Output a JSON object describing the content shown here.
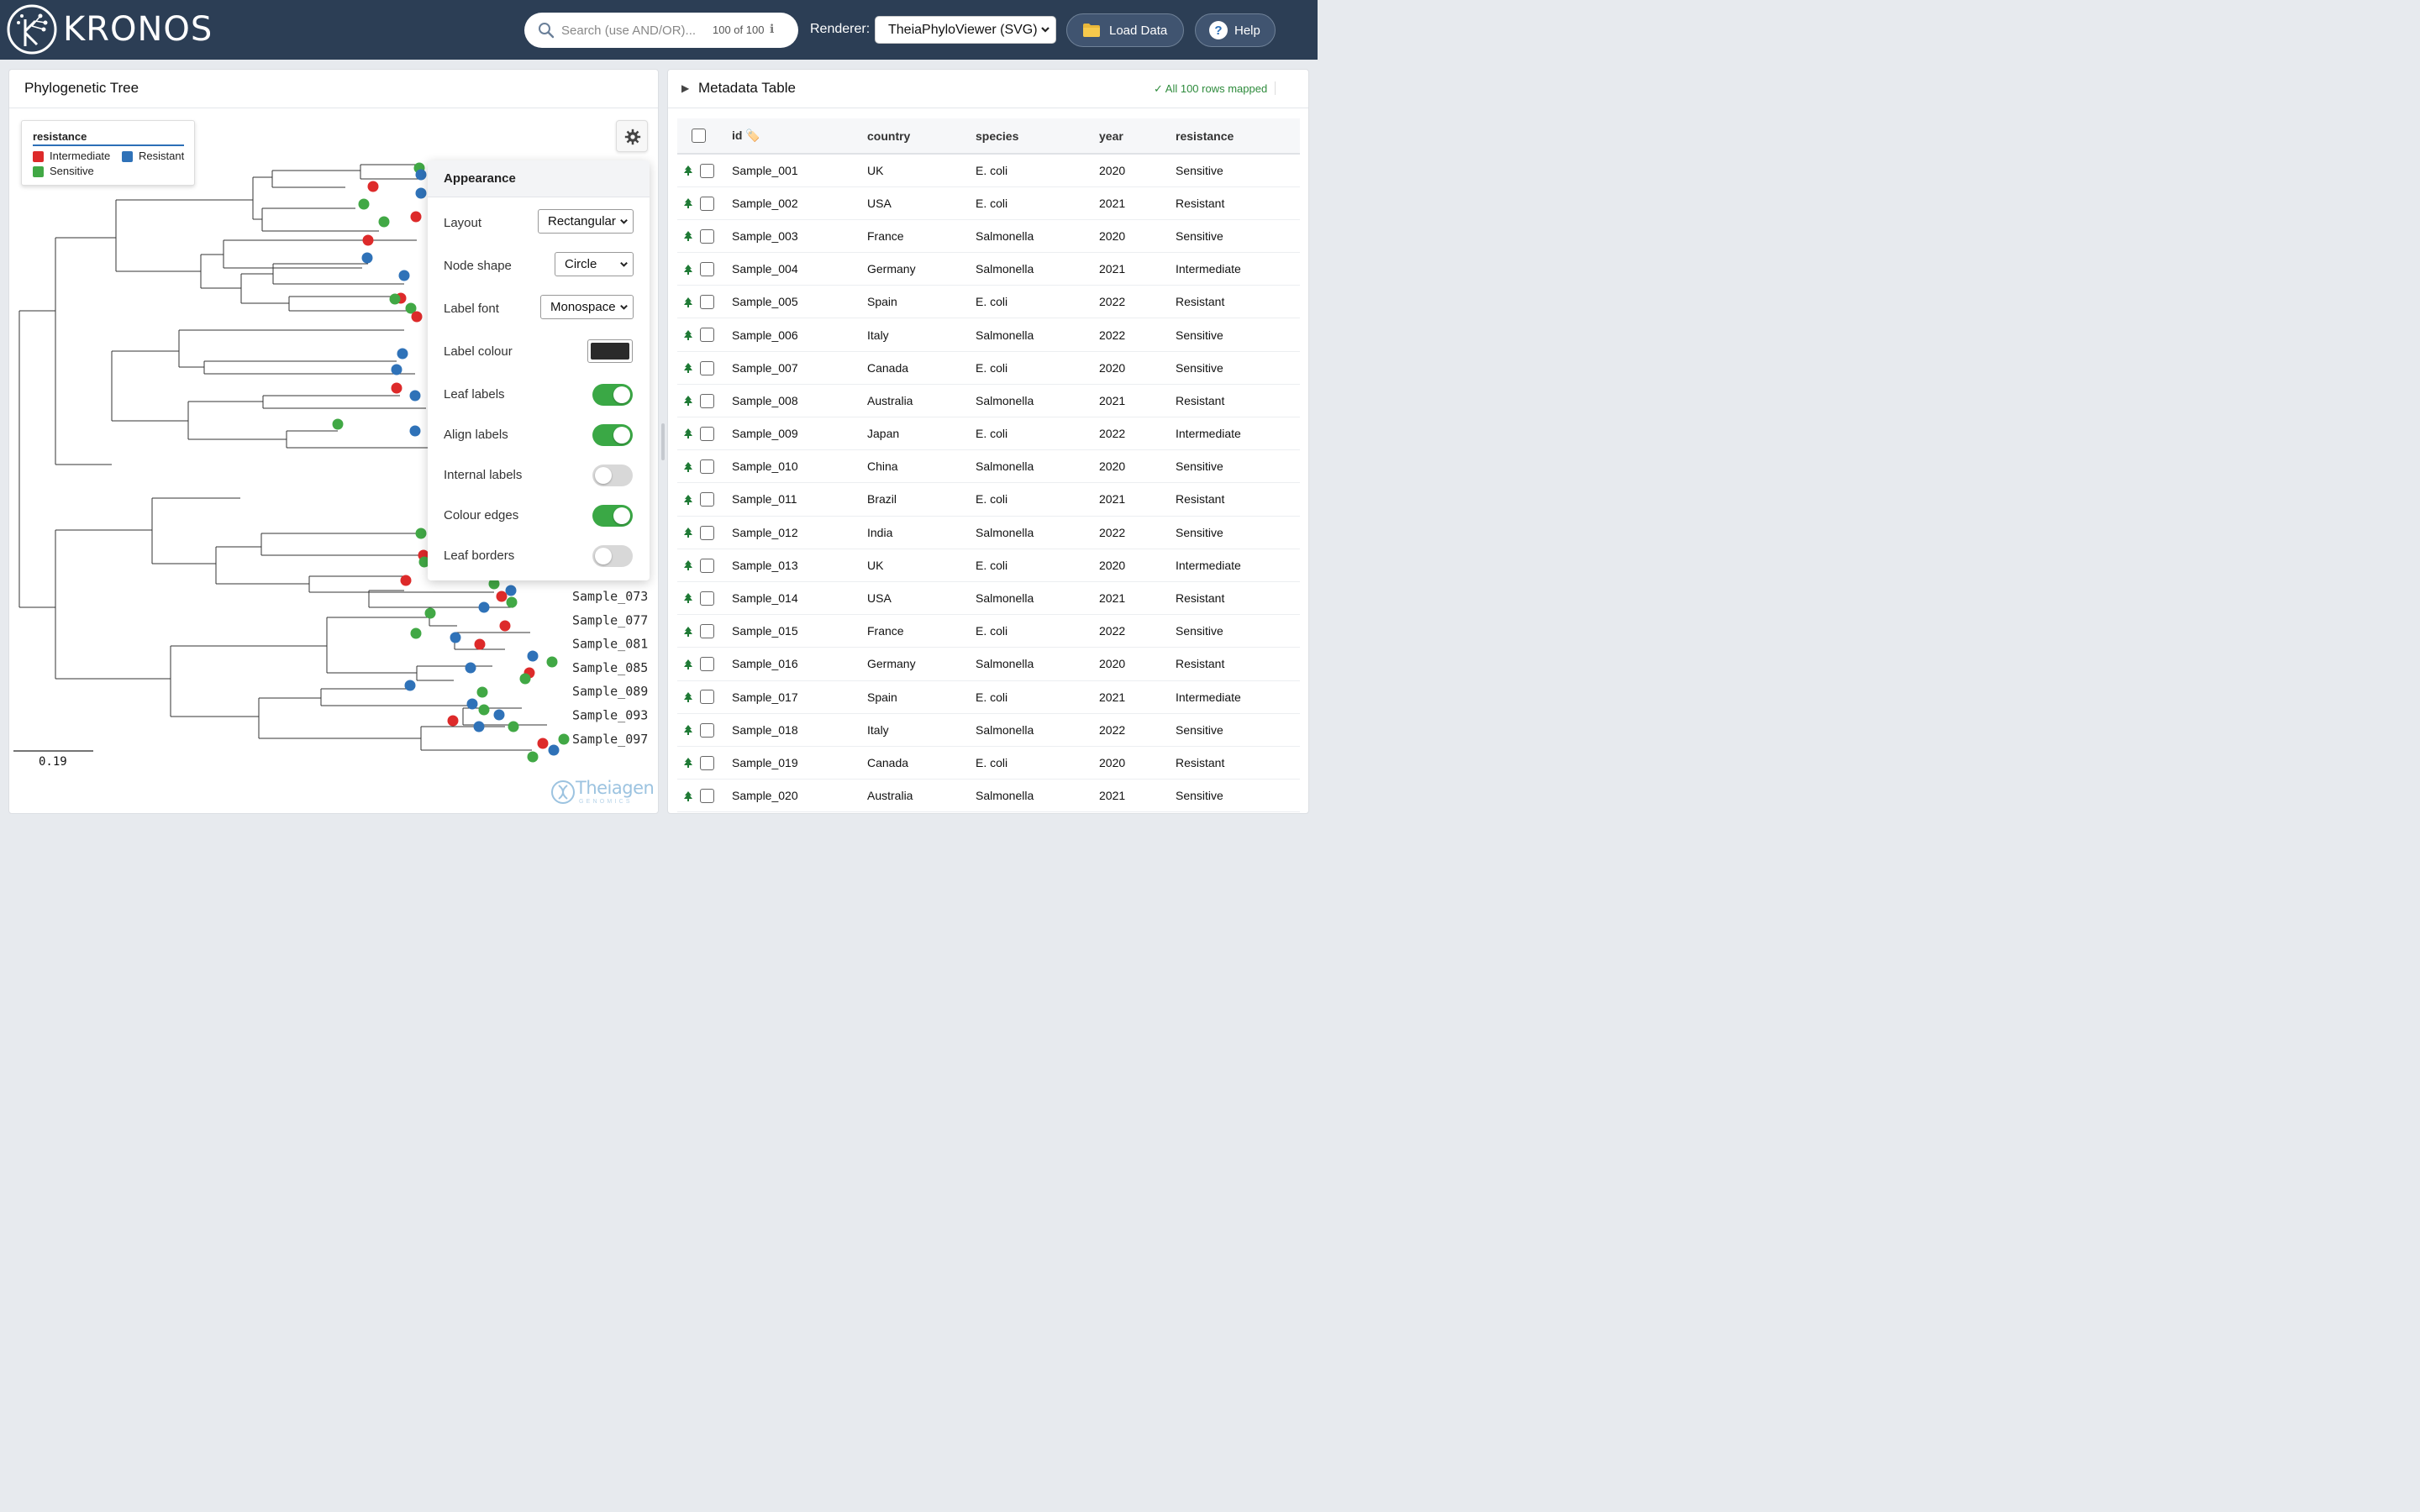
{
  "app": {
    "name": "KRONOS"
  },
  "header": {
    "search_placeholder": "Search (use AND/OR)...",
    "search_count": "100 of 100",
    "search_info_icon": "info-icon",
    "renderer_label": "Renderer:",
    "renderer_value": "TheiaPhyloViewer (SVG)",
    "load_label": "Load Data",
    "load_icon": "folder-icon",
    "help_label": "Help",
    "help_icon": "question-icon"
  },
  "tree_panel": {
    "title": "Phylogenetic Tree",
    "legend": {
      "title": "resistance",
      "items": [
        {
          "label": "Intermediate",
          "color": "#dd2a2a"
        },
        {
          "label": "Resistant",
          "color": "#2f72b8"
        },
        {
          "label": "Sensitive",
          "color": "#41a845"
        }
      ]
    },
    "scale_label": "0.19",
    "visible_leaf_labels": [
      "Sample_073",
      "Sample_077",
      "Sample_081",
      "Sample_085",
      "Sample_089",
      "Sample_093",
      "Sample_097"
    ],
    "watermark": {
      "name": "Theiagen",
      "sub": "GENOMICS"
    }
  },
  "appearance": {
    "title": "Appearance",
    "layout_label": "Layout",
    "layout_value": "Rectangular",
    "node_shape_label": "Node shape",
    "node_shape_value": "Circle",
    "label_font_label": "Label font",
    "label_font_value": "Monospace",
    "label_colour_label": "Label colour",
    "label_colour_value": "#2a2a2a",
    "toggles": [
      {
        "label": "Leaf labels",
        "on": true
      },
      {
        "label": "Align labels",
        "on": true
      },
      {
        "label": "Internal labels",
        "on": false
      },
      {
        "label": "Colour edges",
        "on": true
      },
      {
        "label": "Leaf borders",
        "on": false
      }
    ]
  },
  "meta_panel": {
    "title": "Metadata Table",
    "status": "✓ All 100 rows mapped",
    "columns": [
      "id",
      "country",
      "species",
      "year",
      "resistance"
    ],
    "rows": [
      [
        "Sample_001",
        "UK",
        "E. coli",
        "2020",
        "Sensitive"
      ],
      [
        "Sample_002",
        "USA",
        "E. coli",
        "2021",
        "Resistant"
      ],
      [
        "Sample_003",
        "France",
        "Salmonella",
        "2020",
        "Sensitive"
      ],
      [
        "Sample_004",
        "Germany",
        "Salmonella",
        "2021",
        "Intermediate"
      ],
      [
        "Sample_005",
        "Spain",
        "E. coli",
        "2022",
        "Resistant"
      ],
      [
        "Sample_006",
        "Italy",
        "Salmonella",
        "2022",
        "Sensitive"
      ],
      [
        "Sample_007",
        "Canada",
        "E. coli",
        "2020",
        "Sensitive"
      ],
      [
        "Sample_008",
        "Australia",
        "Salmonella",
        "2021",
        "Resistant"
      ],
      [
        "Sample_009",
        "Japan",
        "E. coli",
        "2022",
        "Intermediate"
      ],
      [
        "Sample_010",
        "China",
        "Salmonella",
        "2020",
        "Sensitive"
      ],
      [
        "Sample_011",
        "Brazil",
        "E. coli",
        "2021",
        "Resistant"
      ],
      [
        "Sample_012",
        "India",
        "Salmonella",
        "2022",
        "Sensitive"
      ],
      [
        "Sample_013",
        "UK",
        "E. coli",
        "2020",
        "Intermediate"
      ],
      [
        "Sample_014",
        "USA",
        "Salmonella",
        "2021",
        "Resistant"
      ],
      [
        "Sample_015",
        "France",
        "E. coli",
        "2022",
        "Sensitive"
      ],
      [
        "Sample_016",
        "Germany",
        "Salmonella",
        "2020",
        "Resistant"
      ],
      [
        "Sample_017",
        "Spain",
        "E. coli",
        "2021",
        "Intermediate"
      ],
      [
        "Sample_018",
        "Italy",
        "Salmonella",
        "2022",
        "Sensitive"
      ],
      [
        "Sample_019",
        "Canada",
        "E. coli",
        "2020",
        "Resistant"
      ],
      [
        "Sample_020",
        "Australia",
        "Salmonella",
        "2021",
        "Sensitive"
      ]
    ]
  }
}
